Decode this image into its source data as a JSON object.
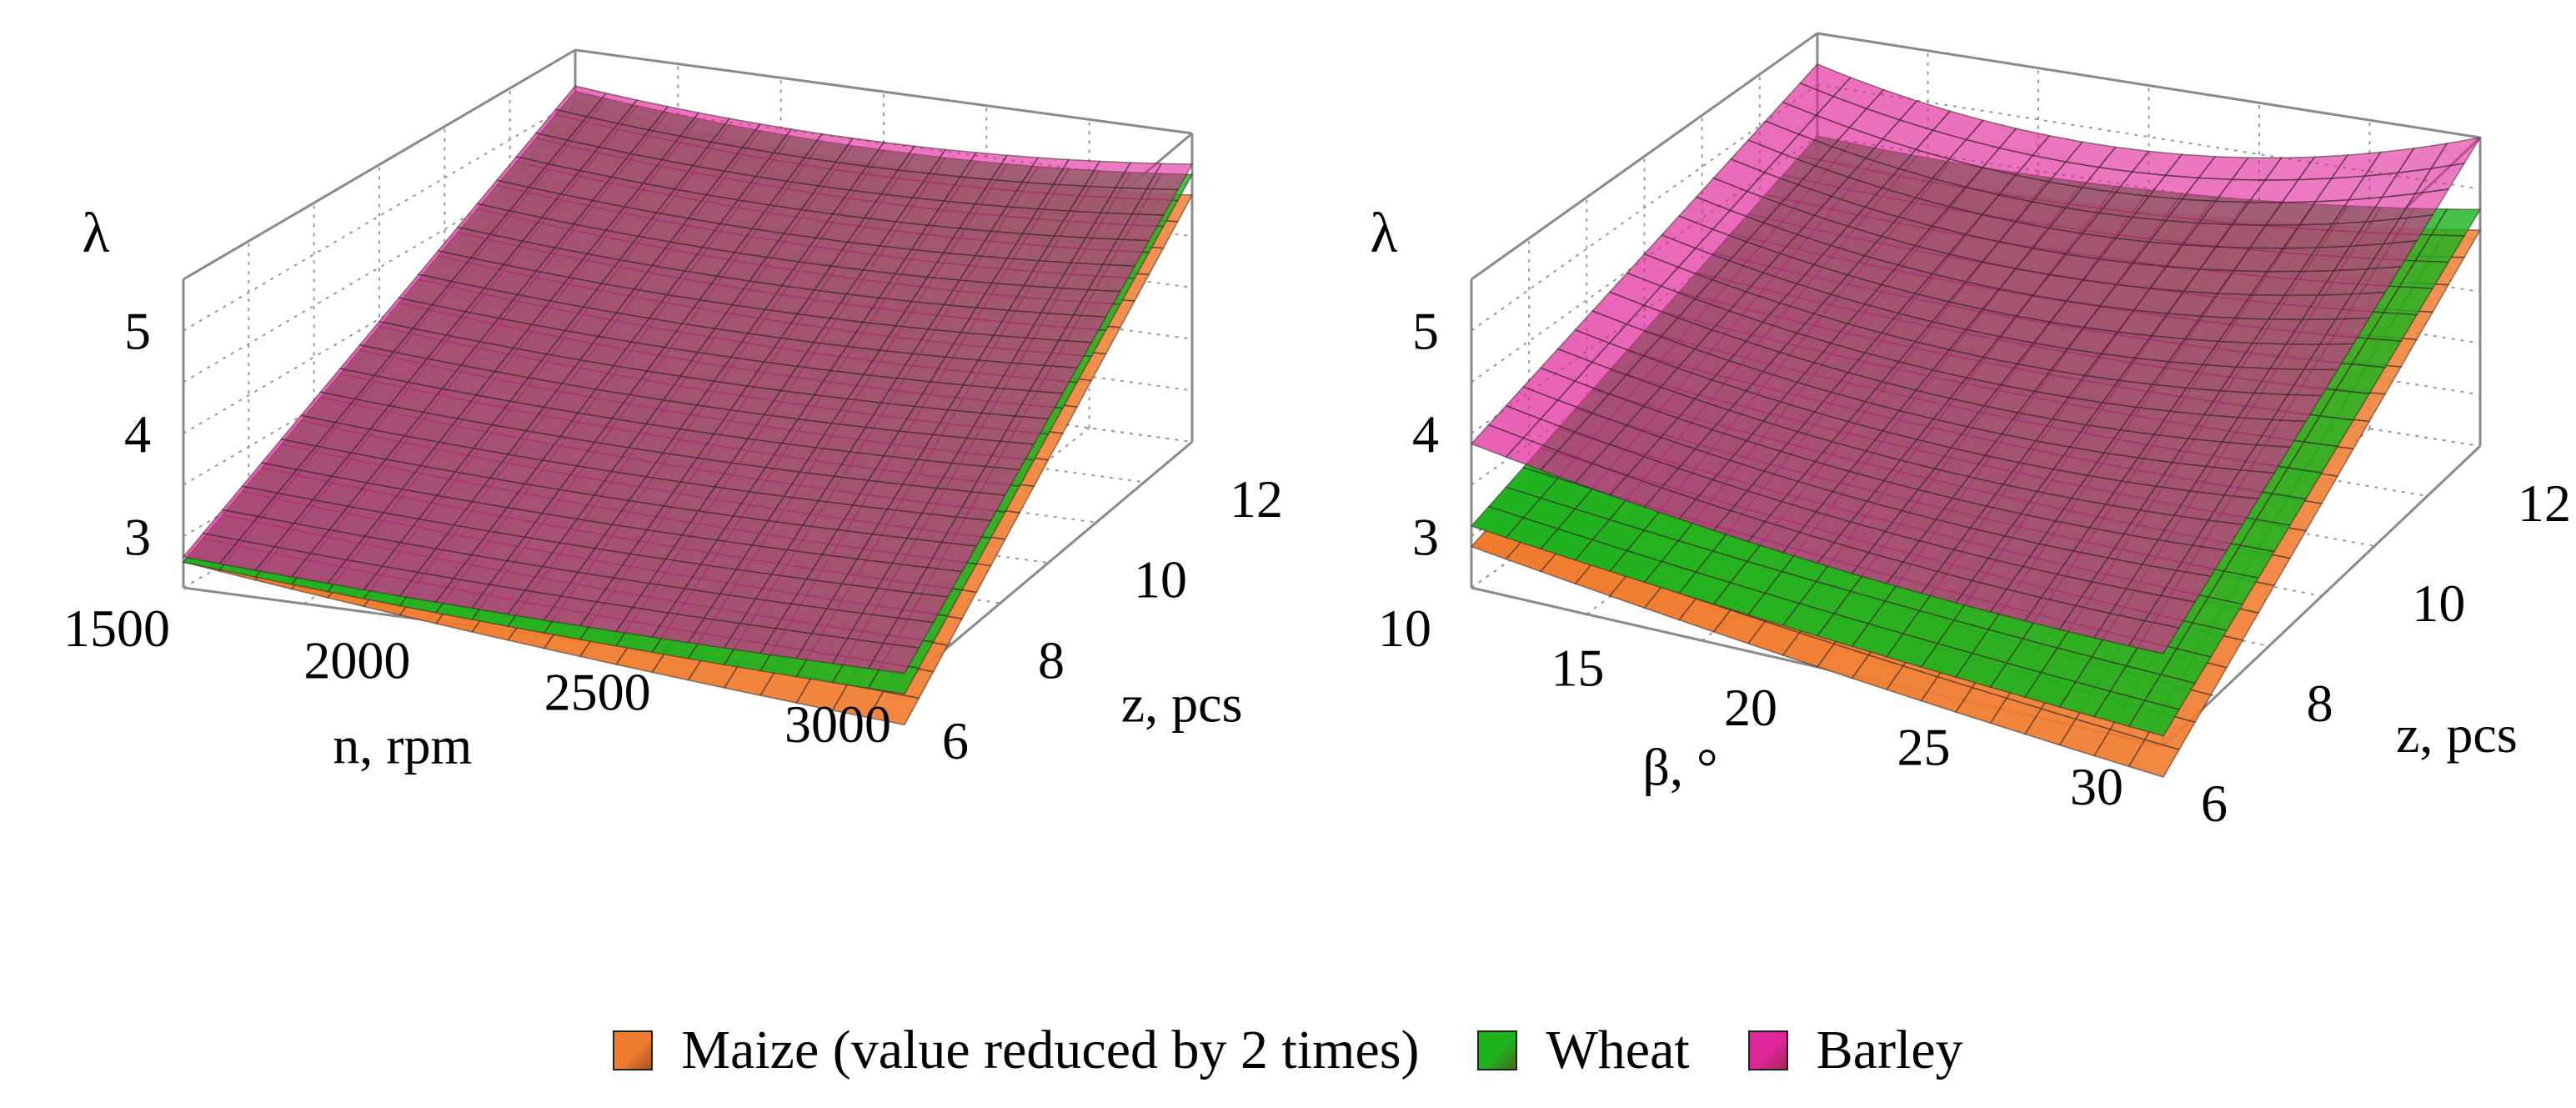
{
  "chart_data": [
    {
      "type": "surface3d",
      "zlabel": "λ",
      "zticks": [
        "3",
        "4",
        "5"
      ],
      "xlabel": "n, rpm",
      "xticks": [
        "1500",
        "2000",
        "2500",
        "3000"
      ],
      "xrange": [
        1500,
        3000
      ],
      "ylabel": "z, pcs",
      "yticks": [
        "6",
        "8",
        "10",
        "12"
      ],
      "yrange": [
        6,
        12
      ],
      "grid": true,
      "series": [
        {
          "name": "Maize (value reduced by 2 times)",
          "color": "#f07c2e",
          "corner_values": {
            "x_min_y_min": 2.75,
            "x_max_y_min": 2.1,
            "x_min_y_max": 5.0,
            "x_max_y_max": 4.9
          }
        },
        {
          "name": "Wheat",
          "color": "#1fb31f",
          "corner_values": {
            "x_min_y_min": 2.75,
            "x_max_y_min": 2.4,
            "x_min_y_max": 5.1,
            "x_max_y_max": 5.1
          }
        },
        {
          "name": "Barley",
          "color": "#e0249a",
          "corner_values": {
            "x_min_y_min": 2.8,
            "x_max_y_min": 2.6,
            "x_min_y_max": 5.15,
            "x_max_y_max": 5.2
          }
        }
      ]
    },
    {
      "type": "surface3d",
      "zlabel": "λ",
      "zticks": [
        "3",
        "4",
        "5"
      ],
      "xlabel": "β, °",
      "xticks": [
        "10",
        "15",
        "20",
        "25",
        "30"
      ],
      "xrange": [
        10,
        30
      ],
      "ylabel": "z, pcs",
      "yticks": [
        "6",
        "8",
        "10",
        "12"
      ],
      "yrange": [
        6,
        12
      ],
      "grid": true,
      "series": [
        {
          "name": "Maize (value reduced by 2 times)",
          "color": "#f07c2e",
          "corner_values": {
            "x_min_y_min": 2.9,
            "x_max_y_min": 2.2,
            "x_min_y_max": 4.3,
            "x_max_y_max": 4.6
          }
        },
        {
          "name": "Wheat",
          "color": "#1fb31f",
          "corner_values": {
            "x_min_y_min": 3.1,
            "x_max_y_min": 2.6,
            "x_min_y_max": 4.5,
            "x_max_y_max": 4.8
          }
        },
        {
          "name": "Barley",
          "color": "#e0249a",
          "corner_values": {
            "x_min_y_min": 3.9,
            "x_max_y_min": 3.4,
            "x_min_y_max": 5.2,
            "x_max_y_max": 5.5
          }
        }
      ]
    }
  ],
  "legend": {
    "items": [
      {
        "label": "Maize (value reduced by 2 times)",
        "color": "#f07c2e"
      },
      {
        "label": "Wheat",
        "color": "#1fb31f"
      },
      {
        "label": "Barley",
        "color": "#e0249a"
      }
    ]
  }
}
